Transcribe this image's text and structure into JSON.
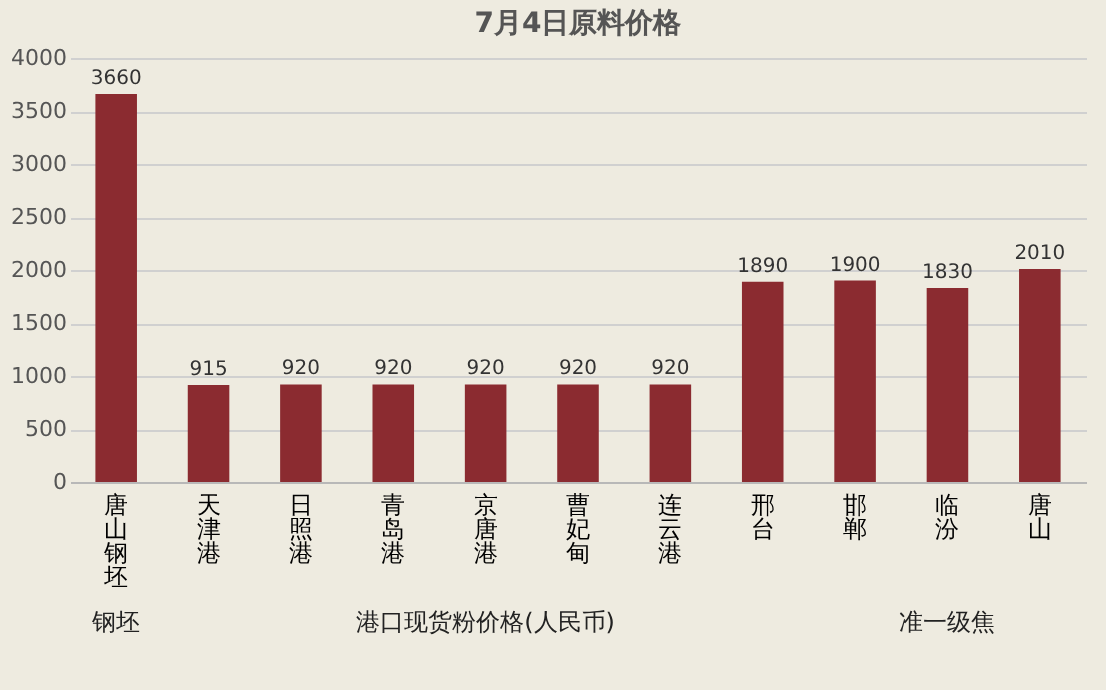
{
  "chart_data": {
    "type": "bar",
    "title": "7月4日原料价格",
    "categories": [
      "唐山钢坯",
      "天津港",
      "日照港",
      "青岛港",
      "京唐港",
      "曹妃甸",
      "连云港",
      "邢台",
      "邯郸",
      "临汾",
      "唐山"
    ],
    "values": [
      3660,
      915,
      920,
      920,
      920,
      920,
      920,
      1890,
      1900,
      1830,
      2010
    ],
    "color": "#8b2b30",
    "ylim": [
      0,
      4000
    ],
    "yticks": [
      0,
      500,
      1000,
      1500,
      2000,
      2500,
      3000,
      3500,
      4000
    ],
    "grid": "y",
    "data_labels": true,
    "annotations": [
      "钢坯",
      "港口现货粉价格(人民币)",
      "准一级焦"
    ]
  }
}
